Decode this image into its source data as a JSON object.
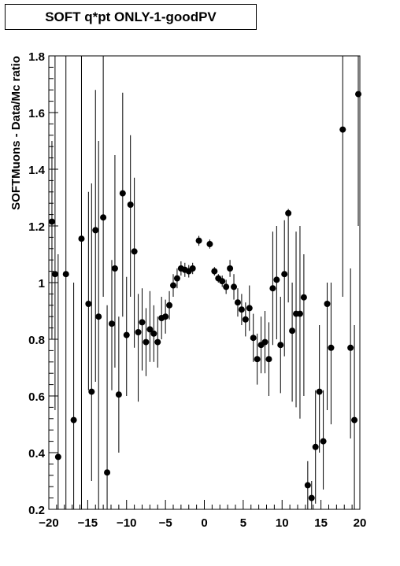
{
  "title": "SOFT q*pt ONLY-1-goodPV",
  "chart_data": {
    "type": "scatter",
    "title": "SOFT q*pt ONLY-1-goodPV",
    "xlabel": "",
    "ylabel": "SOFTMuons - Data/Mc ratio",
    "xlim": [
      -20,
      20
    ],
    "ylim": [
      0.2,
      1.8
    ],
    "x_ticks": [
      -20,
      -15,
      -10,
      -5,
      0,
      5,
      10,
      15,
      20
    ],
    "x_tick_labels": [
      "−20",
      "−15",
      "−10",
      "−5",
      "0",
      "5",
      "10",
      "15",
      "20"
    ],
    "y_ticks": [
      0.2,
      0.4,
      0.6,
      0.8,
      1.0,
      1.2,
      1.4,
      1.6,
      1.8
    ],
    "y_tick_labels": [
      "0.2",
      "0.4",
      "0.6",
      "0.8",
      "1",
      "1.2",
      "1.4",
      "1.6",
      "1.8"
    ],
    "points": [
      {
        "x": -19.6,
        "y": 1.215,
        "lo": 0.8,
        "hi": 1.5
      },
      {
        "x": -19.2,
        "y": 1.03,
        "lo": 0.55,
        "hi": 1.8
      },
      {
        "x": -18.8,
        "y": 0.385,
        "lo": 0.2,
        "hi": 1.1
      },
      {
        "x": -17.8,
        "y": 1.03,
        "lo": 0.2,
        "hi": 1.8
      },
      {
        "x": -16.8,
        "y": 0.515,
        "lo": 0.2,
        "hi": 1.0
      },
      {
        "x": -15.8,
        "y": 1.155,
        "lo": 0.2,
        "hi": 1.8
      },
      {
        "x": -14.9,
        "y": 0.925,
        "lo": 0.62,
        "hi": 1.32
      },
      {
        "x": -14.5,
        "y": 0.615,
        "lo": 0.3,
        "hi": 1.35
      },
      {
        "x": -14.0,
        "y": 1.185,
        "lo": 0.65,
        "hi": 1.68
      },
      {
        "x": -13.6,
        "y": 0.88,
        "lo": 0.2,
        "hi": 1.5
      },
      {
        "x": -13.0,
        "y": 1.23,
        "lo": 0.95,
        "hi": 1.8
      },
      {
        "x": -12.5,
        "y": 0.33,
        "lo": 0.2,
        "hi": 0.92
      },
      {
        "x": -11.9,
        "y": 0.855,
        "lo": 0.62,
        "hi": 1.08
      },
      {
        "x": -11.5,
        "y": 1.05,
        "lo": 0.7,
        "hi": 1.45
      },
      {
        "x": -11.0,
        "y": 0.605,
        "lo": 0.4,
        "hi": 0.88
      },
      {
        "x": -10.5,
        "y": 1.315,
        "lo": 0.88,
        "hi": 1.67
      },
      {
        "x": -10.0,
        "y": 0.815,
        "lo": 0.6,
        "hi": 1.02
      },
      {
        "x": -9.5,
        "y": 1.275,
        "lo": 0.95,
        "hi": 1.52
      },
      {
        "x": -9.0,
        "y": 1.11,
        "lo": 0.77,
        "hi": 1.37
      },
      {
        "x": -8.5,
        "y": 0.825,
        "lo": 0.58,
        "hi": 0.96
      },
      {
        "x": -8.0,
        "y": 0.86,
        "lo": 0.69,
        "hi": 0.98
      },
      {
        "x": -7.5,
        "y": 0.79,
        "lo": 0.67,
        "hi": 0.91
      },
      {
        "x": -7.0,
        "y": 0.835,
        "lo": 0.72,
        "hi": 0.97
      },
      {
        "x": -6.5,
        "y": 0.82,
        "lo": 0.72,
        "hi": 0.92
      },
      {
        "x": -6.0,
        "y": 0.79,
        "lo": 0.7,
        "hi": 0.88
      },
      {
        "x": -5.5,
        "y": 0.875,
        "lo": 0.8,
        "hi": 0.95
      },
      {
        "x": -5.0,
        "y": 0.88,
        "lo": 0.82,
        "hi": 0.94
      },
      {
        "x": -4.5,
        "y": 0.92,
        "lo": 0.87,
        "hi": 0.97
      },
      {
        "x": -4.0,
        "y": 0.99,
        "lo": 0.95,
        "hi": 1.03
      },
      {
        "x": -3.5,
        "y": 1.015,
        "lo": 0.98,
        "hi": 1.05
      },
      {
        "x": -3.0,
        "y": 1.05,
        "lo": 1.025,
        "hi": 1.075
      },
      {
        "x": -2.5,
        "y": 1.045,
        "lo": 1.02,
        "hi": 1.07
      },
      {
        "x": -2.0,
        "y": 1.04,
        "lo": 1.018,
        "hi": 1.062
      },
      {
        "x": -1.5,
        "y": 1.05,
        "lo": 1.03,
        "hi": 1.07
      },
      {
        "x": -0.7,
        "y": 1.148,
        "lo": 1.13,
        "hi": 1.165
      },
      {
        "x": 0.7,
        "y": 1.136,
        "lo": 1.12,
        "hi": 1.152
      },
      {
        "x": 1.3,
        "y": 1.04,
        "lo": 1.025,
        "hi": 1.055
      },
      {
        "x": 1.8,
        "y": 1.015,
        "lo": 1.0,
        "hi": 1.03
      },
      {
        "x": 2.3,
        "y": 1.005,
        "lo": 0.985,
        "hi": 1.025
      },
      {
        "x": 2.8,
        "y": 0.985,
        "lo": 0.96,
        "hi": 1.01
      },
      {
        "x": 3.3,
        "y": 1.05,
        "lo": 1.02,
        "hi": 1.08
      },
      {
        "x": 3.8,
        "y": 0.985,
        "lo": 0.94,
        "hi": 1.03
      },
      {
        "x": 4.3,
        "y": 0.93,
        "lo": 0.88,
        "hi": 0.98
      },
      {
        "x": 4.8,
        "y": 0.905,
        "lo": 0.85,
        "hi": 0.96
      },
      {
        "x": 5.3,
        "y": 0.87,
        "lo": 0.81,
        "hi": 0.93
      },
      {
        "x": 5.8,
        "y": 0.91,
        "lo": 0.83,
        "hi": 0.99
      },
      {
        "x": 6.3,
        "y": 0.805,
        "lo": 0.72,
        "hi": 0.89
      },
      {
        "x": 6.8,
        "y": 0.73,
        "lo": 0.64,
        "hi": 0.82
      },
      {
        "x": 7.3,
        "y": 0.78,
        "lo": 0.68,
        "hi": 0.88
      },
      {
        "x": 7.8,
        "y": 0.79,
        "lo": 0.68,
        "hi": 0.9
      },
      {
        "x": 8.3,
        "y": 0.73,
        "lo": 0.6,
        "hi": 0.86
      },
      {
        "x": 8.8,
        "y": 0.98,
        "lo": 0.78,
        "hi": 1.18
      },
      {
        "x": 9.3,
        "y": 1.01,
        "lo": 0.8,
        "hi": 1.2
      },
      {
        "x": 9.8,
        "y": 0.78,
        "lo": 0.61,
        "hi": 0.95
      },
      {
        "x": 10.3,
        "y": 1.03,
        "lo": 0.74,
        "hi": 1.22
      },
      {
        "x": 10.8,
        "y": 1.245,
        "lo": 0.93,
        "hi": 1.26
      },
      {
        "x": 11.3,
        "y": 0.83,
        "lo": 0.58,
        "hi": 1.0
      },
      {
        "x": 11.8,
        "y": 0.89,
        "lo": 0.56,
        "hi": 1.18
      },
      {
        "x": 12.3,
        "y": 0.89,
        "lo": 0.52,
        "hi": 1.2
      },
      {
        "x": 12.8,
        "y": 0.948,
        "lo": 0.6,
        "hi": 1.1
      },
      {
        "x": 13.3,
        "y": 0.285,
        "lo": 0.2,
        "hi": 0.37
      },
      {
        "x": 13.8,
        "y": 0.24,
        "lo": 0.2,
        "hi": 0.3
      },
      {
        "x": 14.3,
        "y": 0.42,
        "lo": 0.22,
        "hi": 0.62
      },
      {
        "x": 14.8,
        "y": 0.615,
        "lo": 0.4,
        "hi": 0.85
      },
      {
        "x": 15.3,
        "y": 0.44,
        "lo": 0.27,
        "hi": 0.62
      },
      {
        "x": 15.8,
        "y": 0.925,
        "lo": 0.55,
        "hi": 1.0
      },
      {
        "x": 16.3,
        "y": 0.77,
        "lo": 0.5,
        "hi": 1.0
      },
      {
        "x": 17.8,
        "y": 1.54,
        "lo": 0.95,
        "hi": 1.8
      },
      {
        "x": 18.8,
        "y": 0.77,
        "lo": 0.45,
        "hi": 1.05
      },
      {
        "x": 19.3,
        "y": 0.515,
        "lo": 0.2,
        "hi": 0.85
      },
      {
        "x": 19.8,
        "y": 1.665,
        "lo": 1.2,
        "hi": 1.8
      }
    ]
  }
}
